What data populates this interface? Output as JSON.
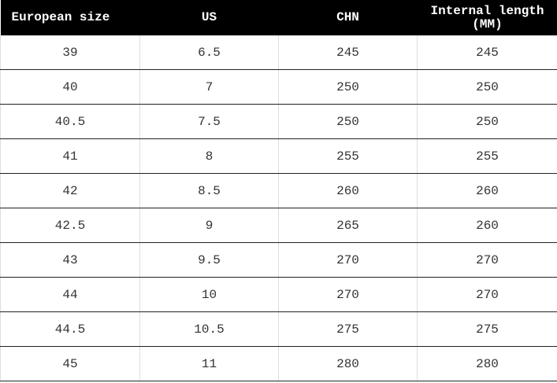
{
  "table": {
    "header": [
      "European size",
      "US",
      "CHN",
      "Internal length (MM)"
    ],
    "rows": [
      [
        "39",
        "6.5",
        "245",
        "245"
      ],
      [
        "40",
        "7",
        "250",
        "250"
      ],
      [
        "40.5",
        "7.5",
        "250",
        "250"
      ],
      [
        "41",
        "8",
        "255",
        "255"
      ],
      [
        "42",
        "8.5",
        "260",
        "260"
      ],
      [
        "42.5",
        "9",
        "265",
        "260"
      ],
      [
        "43",
        "9.5",
        "270",
        "270"
      ],
      [
        "44",
        "10",
        "270",
        "270"
      ],
      [
        "44.5",
        "10.5",
        "275",
        "275"
      ],
      [
        "45",
        "11",
        "280",
        "280"
      ]
    ]
  }
}
